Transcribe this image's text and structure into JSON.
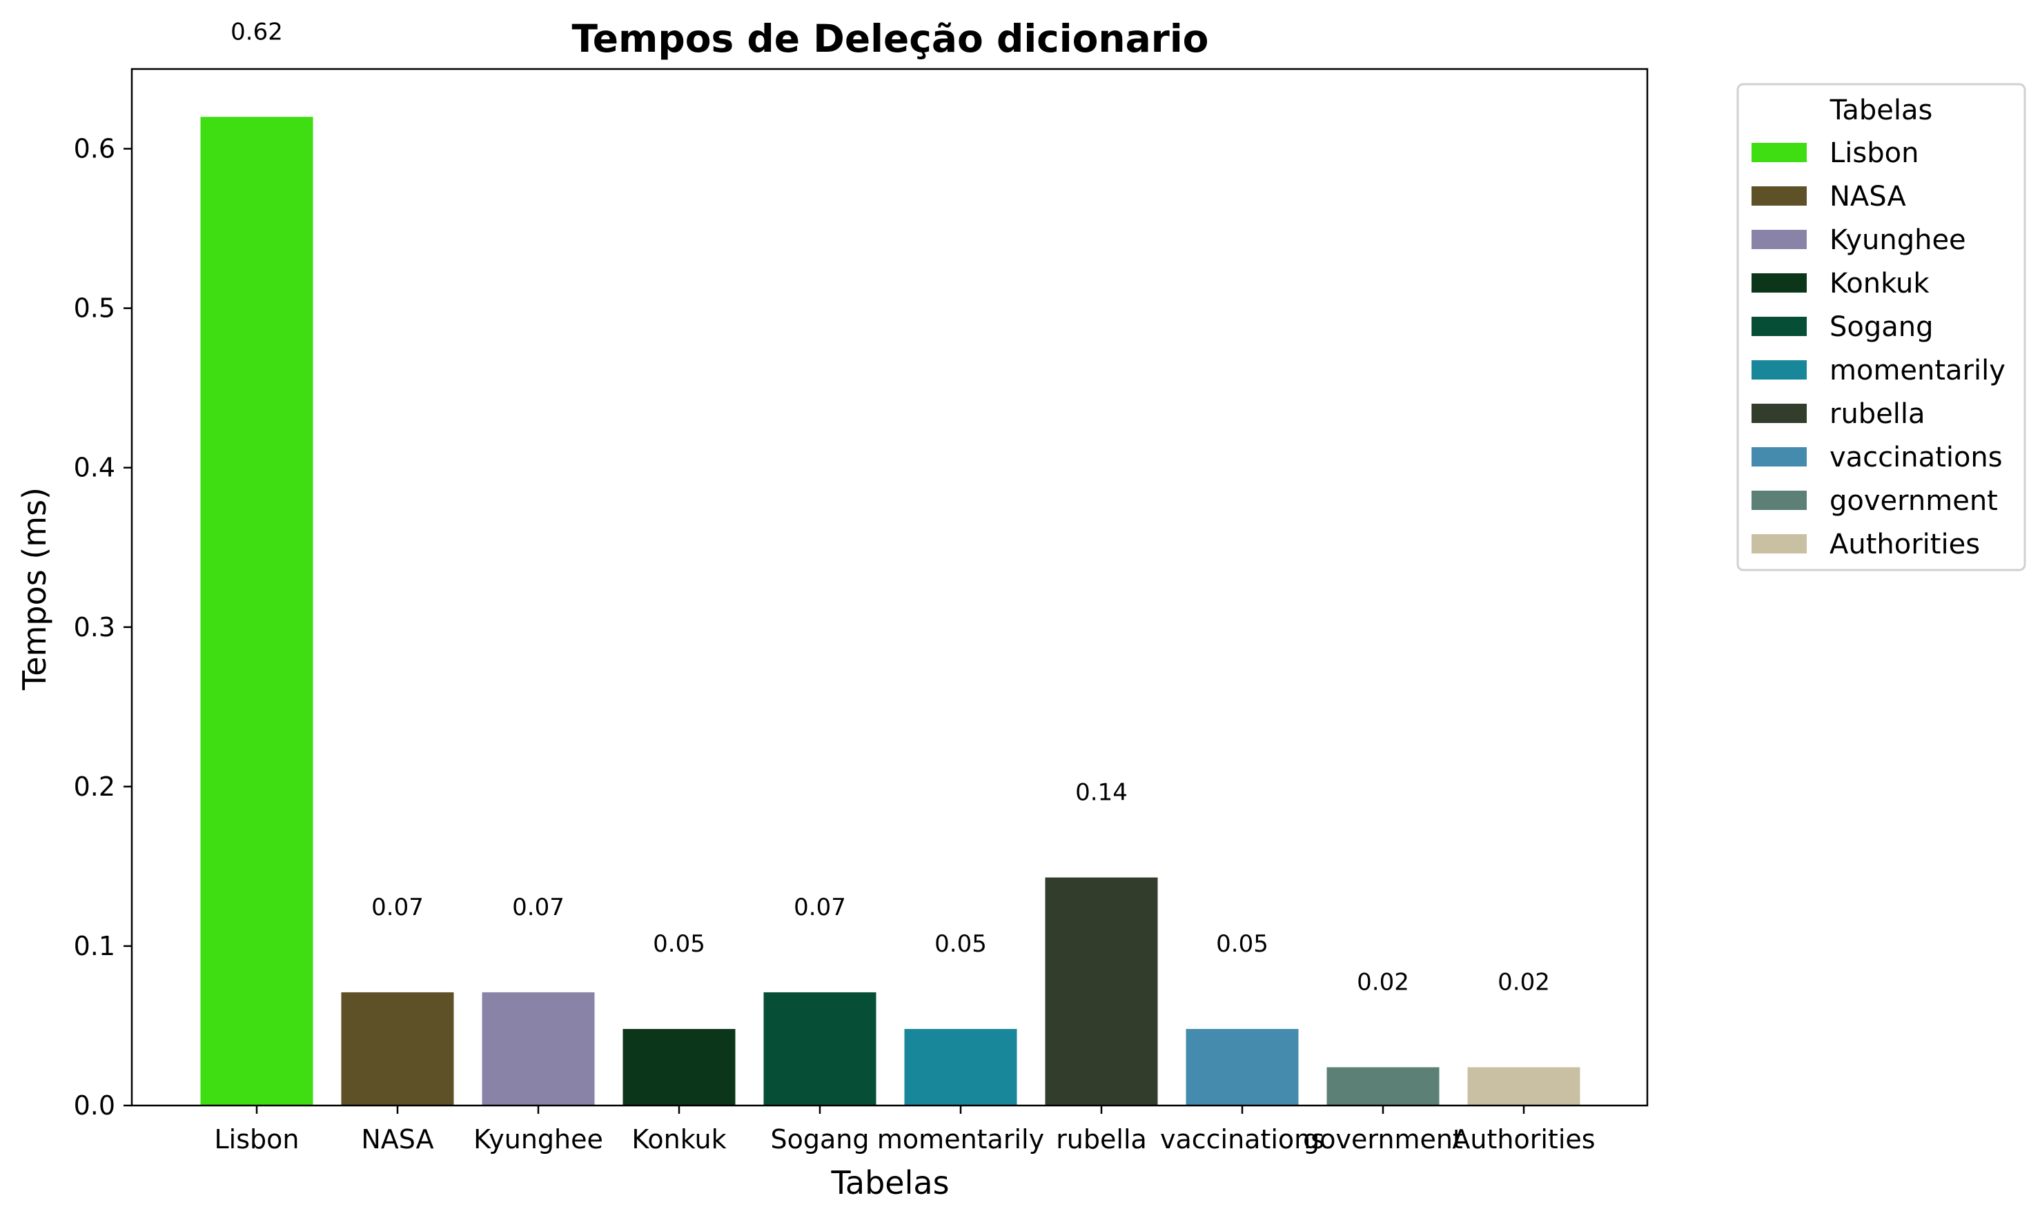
{
  "chart_data": {
    "type": "bar",
    "title": "Tempos de Deleção  dicionario",
    "xlabel": "Tabelas",
    "ylabel": "Tempos (ms)",
    "ylim": [
      0,
      0.65
    ],
    "yticks": [
      "0.0",
      "0.1",
      "0.2",
      "0.3",
      "0.4",
      "0.5",
      "0.6"
    ],
    "grid": false,
    "legend": {
      "title": "Tabelas",
      "position": "outside-top-right"
    },
    "categories": [
      "Lisbon",
      "NASA",
      "Kyunghee",
      "Konkuk",
      "Sogang",
      "momentarily",
      "rubella",
      "vaccinations",
      "government",
      "Authorities"
    ],
    "values": [
      0.62,
      0.071,
      0.071,
      0.048,
      0.071,
      0.048,
      0.143,
      0.048,
      0.024,
      0.024
    ],
    "labels": [
      "0.62",
      "0.07",
      "0.07",
      "0.05",
      "0.07",
      "0.05",
      "0.14",
      "0.05",
      "0.02",
      "0.02"
    ],
    "colors": [
      "#3ede12",
      "#5e5027",
      "#8a83a8",
      "#0c3619",
      "#064f36",
      "#188799",
      "#323d2c",
      "#448bad",
      "#5c7f76",
      "#c9c0a3"
    ]
  }
}
